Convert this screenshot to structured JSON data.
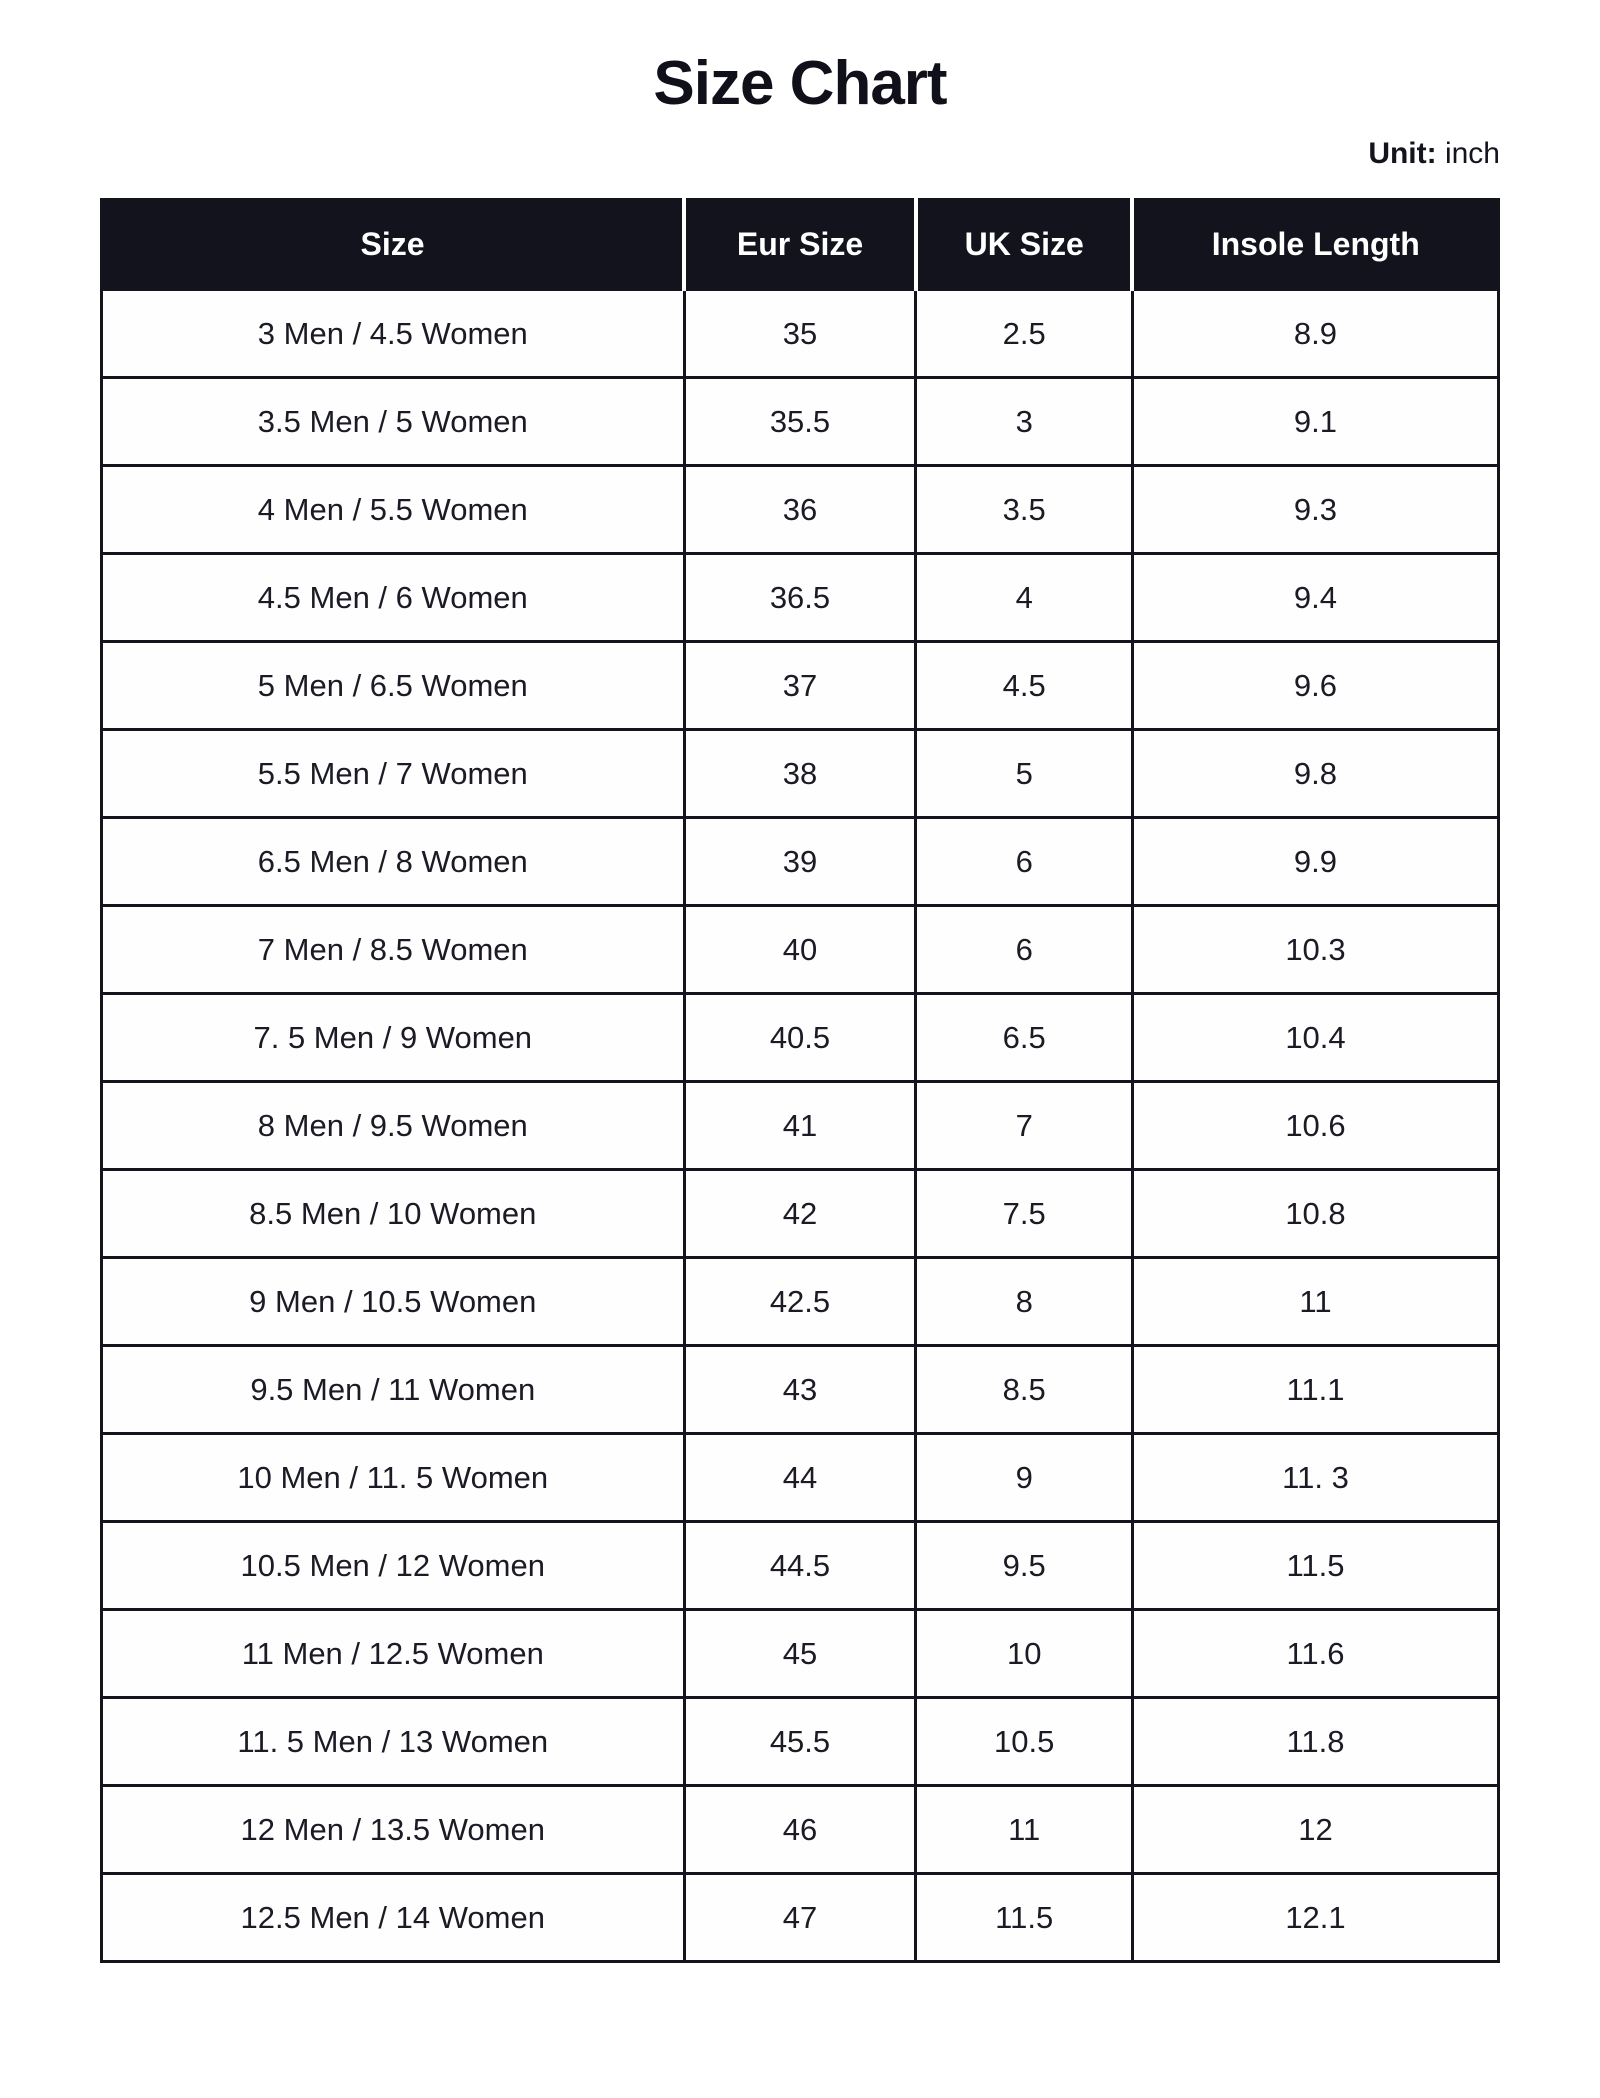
{
  "page": {
    "title": "Size Chart",
    "unit_label": "Unit:",
    "unit_value": " inch"
  },
  "colors": {
    "header_bg": "#13131d",
    "header_text": "#ffffff",
    "body_text": "#1b1b25",
    "border": "#14141c",
    "background": "#ffffff"
  },
  "table": {
    "columns": [
      "Size",
      "Eur Size",
      "UK Size",
      "Insole Length"
    ],
    "rows": [
      [
        "3 Men / 4.5 Women",
        "35",
        "2.5",
        "8.9"
      ],
      [
        "3.5 Men / 5 Women",
        "35.5",
        "3",
        "9.1"
      ],
      [
        "4 Men / 5.5 Women",
        "36",
        "3.5",
        "9.3"
      ],
      [
        "4.5 Men / 6 Women",
        "36.5",
        "4",
        "9.4"
      ],
      [
        "5 Men / 6.5 Women",
        "37",
        "4.5",
        "9.6"
      ],
      [
        "5.5 Men / 7 Women",
        "38",
        "5",
        "9.8"
      ],
      [
        "6.5 Men / 8 Women",
        "39",
        "6",
        "9.9"
      ],
      [
        "7 Men / 8.5 Women",
        "40",
        "6",
        "10.3"
      ],
      [
        "7. 5 Men / 9 Women",
        "40.5",
        "6.5",
        "10.4"
      ],
      [
        "8 Men / 9.5 Women",
        "41",
        "7",
        "10.6"
      ],
      [
        "8.5 Men / 10 Women",
        "42",
        "7.5",
        "10.8"
      ],
      [
        "9 Men / 10.5 Women",
        "42.5",
        "8",
        "11"
      ],
      [
        "9.5 Men / 11 Women",
        "43",
        "8.5",
        "11.1"
      ],
      [
        "10 Men / 11. 5 Women",
        "44",
        "9",
        "11. 3"
      ],
      [
        "10.5 Men / 12 Women",
        "44.5",
        "9.5",
        "11.5"
      ],
      [
        "11 Men / 12.5 Women",
        "45",
        "10",
        "11.6"
      ],
      [
        "11. 5 Men / 13 Women",
        "45.5",
        "10.5",
        "11.8"
      ],
      [
        "12 Men / 13.5 Women",
        "46",
        "11",
        "12"
      ],
      [
        "12.5 Men / 14 Women",
        "47",
        "11.5",
        "12.1"
      ]
    ]
  },
  "chart_data": {
    "type": "table",
    "title": "Size Chart",
    "unit": "inch",
    "columns": [
      "Size",
      "Eur Size",
      "UK Size",
      "Insole Length"
    ],
    "rows": [
      {
        "size": "3 Men / 4.5 Women",
        "eur": "35",
        "uk": "2.5",
        "insole_length_in": 8.9
      },
      {
        "size": "3.5 Men / 5 Women",
        "eur": "35.5",
        "uk": "3",
        "insole_length_in": 9.1
      },
      {
        "size": "4 Men / 5.5 Women",
        "eur": "36",
        "uk": "3.5",
        "insole_length_in": 9.3
      },
      {
        "size": "4.5 Men / 6 Women",
        "eur": "36.5",
        "uk": "4",
        "insole_length_in": 9.4
      },
      {
        "size": "5 Men / 6.5 Women",
        "eur": "37",
        "uk": "4.5",
        "insole_length_in": 9.6
      },
      {
        "size": "5.5 Men / 7 Women",
        "eur": "38",
        "uk": "5",
        "insole_length_in": 9.8
      },
      {
        "size": "6.5 Men / 8 Women",
        "eur": "39",
        "uk": "6",
        "insole_length_in": 9.9
      },
      {
        "size": "7 Men / 8.5 Women",
        "eur": "40",
        "uk": "6",
        "insole_length_in": 10.3
      },
      {
        "size": "7.5 Men / 9 Women",
        "eur": "40.5",
        "uk": "6.5",
        "insole_length_in": 10.4
      },
      {
        "size": "8 Men / 9.5 Women",
        "eur": "41",
        "uk": "7",
        "insole_length_in": 10.6
      },
      {
        "size": "8.5 Men / 10 Women",
        "eur": "42",
        "uk": "7.5",
        "insole_length_in": 10.8
      },
      {
        "size": "9 Men / 10.5 Women",
        "eur": "42.5",
        "uk": "8",
        "insole_length_in": 11
      },
      {
        "size": "9.5 Men / 11 Women",
        "eur": "43",
        "uk": "8.5",
        "insole_length_in": 11.1
      },
      {
        "size": "10 Men / 11.5 Women",
        "eur": "44",
        "uk": "9",
        "insole_length_in": 11.3
      },
      {
        "size": "10.5 Men / 12 Women",
        "eur": "44.5",
        "uk": "9.5",
        "insole_length_in": 11.5
      },
      {
        "size": "11 Men / 12.5 Women",
        "eur": "45",
        "uk": "10",
        "insole_length_in": 11.6
      },
      {
        "size": "11.5 Men / 13 Women",
        "eur": "45.5",
        "uk": "10.5",
        "insole_length_in": 11.8
      },
      {
        "size": "12 Men / 13.5 Women",
        "eur": "46",
        "uk": "11",
        "insole_length_in": 12
      },
      {
        "size": "12.5 Men / 14 Women",
        "eur": "47",
        "uk": "11.5",
        "insole_length_in": 12.1
      }
    ]
  }
}
